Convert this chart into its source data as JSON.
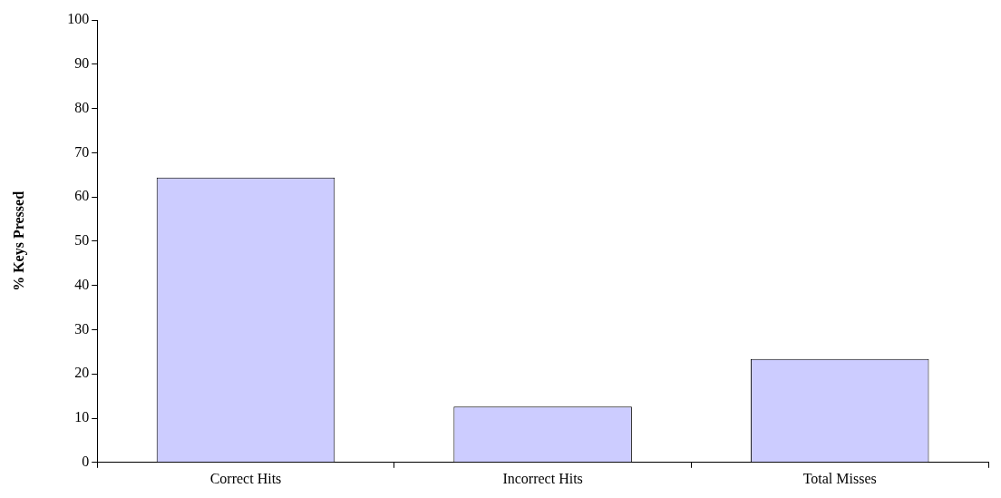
{
  "chart_data": {
    "type": "bar",
    "ylabel": "% Keys Pressed",
    "categories": [
      "Correct Hits",
      "Incorrect Hits",
      "Total Misses"
    ],
    "values": [
      64.4,
      12.6,
      23.4
    ],
    "color": "#ccccff",
    "ylim": [
      0,
      100
    ],
    "yticks": [
      0,
      10,
      20,
      30,
      40,
      50,
      60,
      70,
      80,
      90,
      100
    ],
    "grid": false,
    "legend": false
  }
}
